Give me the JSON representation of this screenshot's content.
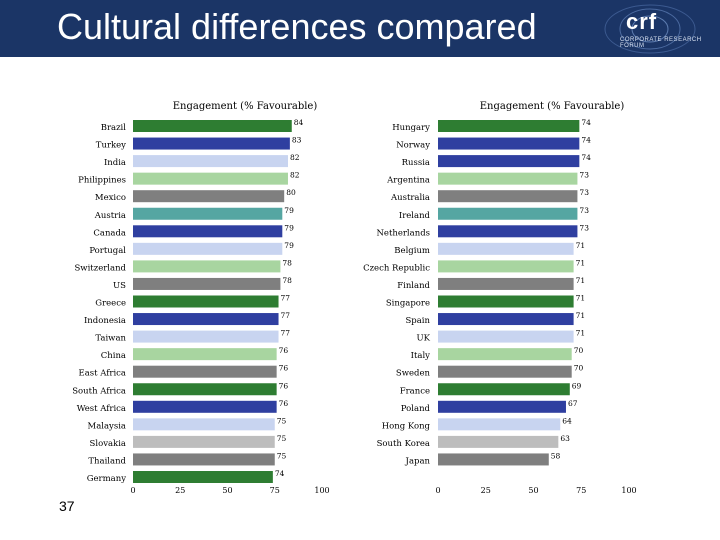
{
  "header": {
    "title": "Cultural differences compared",
    "logo_text": "crf",
    "logo_subtext": "CORPORATE RESEARCH FORUM"
  },
  "page_number": "37",
  "colors": {
    "header_bg": "#1b3566",
    "dark_green": "#2e7d32",
    "medium_green": "#3a8f2e",
    "light_green": "#a8d5a0",
    "blue": "#2f3fa0",
    "light_blue": "#c8d4f0",
    "gray": "#7f7f7f",
    "light_gray": "#bdbdbd",
    "teal": "#55a6a2"
  },
  "chart_data": [
    {
      "type": "bar",
      "orientation": "horizontal",
      "title": "Engagement (% Favourable)",
      "xlim": [
        0,
        100
      ],
      "xticks": [
        0,
        25,
        50,
        75,
        100
      ],
      "categories": [
        "Brazil",
        "Turkey",
        "India",
        "Philippines",
        "Mexico",
        "Austria",
        "Canada",
        "Portugal",
        "Switzerland",
        "US",
        "Greece",
        "Indonesia",
        "Taiwan",
        "China",
        "East Africa",
        "South Africa",
        "West Africa",
        "Malaysia",
        "Slovakia",
        "Thailand",
        "Germany"
      ],
      "values": [
        84,
        83,
        82,
        82,
        80,
        79,
        79,
        79,
        78,
        78,
        77,
        77,
        77,
        76,
        76,
        76,
        76,
        75,
        75,
        75,
        74
      ],
      "bar_colors": [
        "#2e7d32",
        "#2f3fa0",
        "#c8d4f0",
        "#a8d5a0",
        "#7f7f7f",
        "#55a6a2",
        "#2f3fa0",
        "#c8d4f0",
        "#a8d5a0",
        "#7f7f7f",
        "#2e7d32",
        "#2f3fa0",
        "#c8d4f0",
        "#a8d5a0",
        "#7f7f7f",
        "#2e7d32",
        "#2f3fa0",
        "#c8d4f0",
        "#bdbdbd",
        "#7f7f7f",
        "#2e7d32"
      ]
    },
    {
      "type": "bar",
      "orientation": "horizontal",
      "title": "Engagement (% Favourable)",
      "xlim": [
        0,
        100
      ],
      "xticks": [
        0,
        25,
        50,
        75,
        100
      ],
      "categories": [
        "Hungary",
        "Norway",
        "Russia",
        "Argentina",
        "Australia",
        "Ireland",
        "Netherlands",
        "Belgium",
        "Czech Republic",
        "Finland",
        "Singapore",
        "Spain",
        "UK",
        "Italy",
        "Sweden",
        "France",
        "Poland",
        "Hong Kong",
        "South Korea",
        "Japan"
      ],
      "values": [
        74,
        74,
        74,
        73,
        73,
        73,
        73,
        71,
        71,
        71,
        71,
        71,
        71,
        70,
        70,
        69,
        67,
        64,
        63,
        58
      ],
      "bar_colors": [
        "#2e7d32",
        "#2f3fa0",
        "#2f3fa0",
        "#a8d5a0",
        "#7f7f7f",
        "#55a6a2",
        "#2f3fa0",
        "#c8d4f0",
        "#a8d5a0",
        "#7f7f7f",
        "#2e7d32",
        "#2f3fa0",
        "#c8d4f0",
        "#a8d5a0",
        "#7f7f7f",
        "#2e7d32",
        "#2f3fa0",
        "#c8d4f0",
        "#bdbdbd",
        "#7f7f7f"
      ]
    }
  ]
}
